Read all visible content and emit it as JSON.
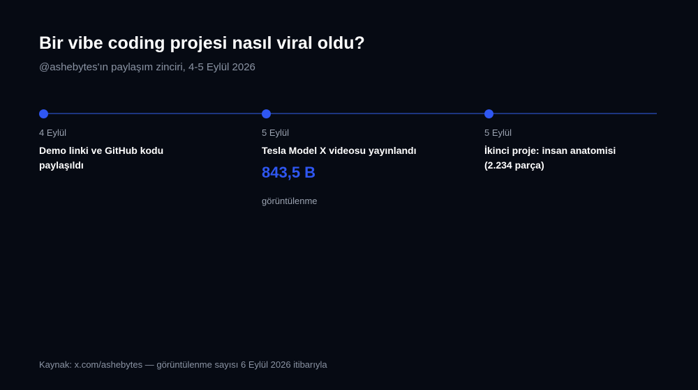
{
  "header": {
    "title": "Bir vibe coding projesi nasıl viral oldu?",
    "subtitle": "@ashebytes'ın paylaşım zinciri, 4-5 Eylül 2026"
  },
  "events": [
    {
      "date": "4 Eylül",
      "title_lines": [
        "Demo linki ve GitHub kodu",
        "paylaşıldı"
      ]
    },
    {
      "date": "5 Eylül",
      "title_lines": [
        "Tesla Model X videosu yayınlandı"
      ],
      "stat": {
        "value": "843,5 B",
        "label": "görüntülenme"
      }
    },
    {
      "date": "5 Eylül",
      "title_lines": [
        "İkinci proje: insan anatomisi",
        "(2.234 parça)"
      ]
    }
  ],
  "footer": {
    "source": "Kaynak: x.com/ashebytes — görüntülenme sayısı 6 Eylül 2026 itibarıyla"
  }
}
